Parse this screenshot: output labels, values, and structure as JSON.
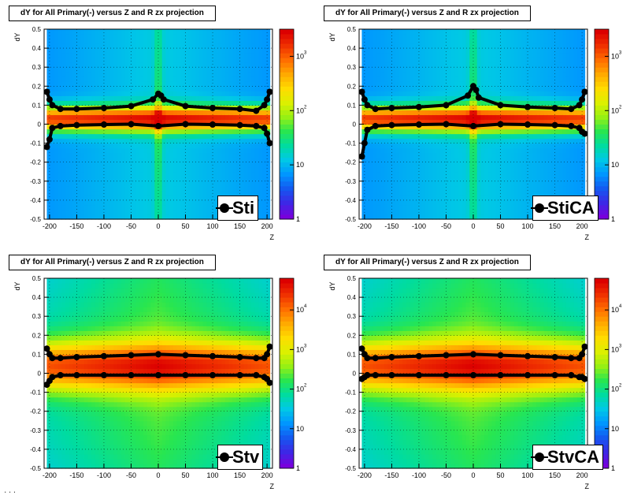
{
  "footer_text": "...",
  "colors": {
    "marker": "#000000",
    "frame": "#000000"
  },
  "chart_data": [
    {
      "type": "heatmap",
      "title": "dY for All Primary(-) versus Z and R zx projection",
      "xlabel": "Z",
      "ylabel": "dY",
      "xlim": [
        -210,
        210
      ],
      "ylim": [
        -0.5,
        0.5
      ],
      "x_ticks": [
        "-200",
        "-150",
        "-100",
        "-50",
        "0",
        "50",
        "100",
        "150",
        "200"
      ],
      "y_ticks": [
        "-0.5",
        "-0.4",
        "-0.3",
        "-0.2",
        "-0.1",
        "0",
        "0.1",
        "0.2",
        "0.3",
        "0.4",
        "0.5"
      ],
      "z_scale": "log",
      "z_ticks": [
        "1",
        "10",
        "10^2",
        "10^3"
      ],
      "legend": {
        "label": "Sti",
        "placement": "bottom-right"
      },
      "series": [
        {
          "x": [
            -205,
            -200,
            -195,
            -180,
            -150,
            -100,
            -50,
            -10,
            0,
            5,
            10,
            50,
            100,
            150,
            180,
            195,
            200,
            205
          ],
          "y": [
            0.17,
            0.13,
            0.1,
            0.08,
            0.08,
            0.085,
            0.095,
            0.13,
            0.16,
            0.15,
            0.13,
            0.095,
            0.085,
            0.08,
            0.07,
            0.1,
            0.13,
            0.17
          ]
        },
        {
          "x": [
            -205,
            -200,
            -195,
            -180,
            -150,
            -100,
            -50,
            0,
            50,
            100,
            150,
            180,
            195,
            200,
            205
          ],
          "y": [
            -0.12,
            -0.08,
            -0.02,
            -0.01,
            -0.005,
            -0.002,
            0.0,
            -0.01,
            0.0,
            -0.002,
            -0.005,
            -0.01,
            -0.02,
            -0.05,
            -0.1
          ]
        }
      ]
    },
    {
      "type": "heatmap",
      "title": "dY for All Primary(-) versus Z and R zx projection",
      "xlabel": "Z",
      "ylabel": "dY",
      "xlim": [
        -210,
        210
      ],
      "ylim": [
        -0.5,
        0.5
      ],
      "x_ticks": [
        "-200",
        "-150",
        "-100",
        "-50",
        "0",
        "50",
        "100",
        "150",
        "200"
      ],
      "y_ticks": [
        "-0.5",
        "-0.4",
        "-0.3",
        "-0.2",
        "-0.1",
        "0",
        "0.1",
        "0.2",
        "0.3",
        "0.4",
        "0.5"
      ],
      "z_scale": "log",
      "z_ticks": [
        "1",
        "10",
        "10^2",
        "10^3"
      ],
      "legend": {
        "label": "StiCA",
        "placement": "bottom-right"
      },
      "series": [
        {
          "x": [
            -205,
            -200,
            -195,
            -180,
            -150,
            -100,
            -50,
            -10,
            0,
            5,
            10,
            50,
            100,
            150,
            180,
            195,
            200,
            205
          ],
          "y": [
            0.17,
            0.13,
            0.1,
            0.08,
            0.085,
            0.09,
            0.1,
            0.15,
            0.2,
            0.18,
            0.14,
            0.1,
            0.09,
            0.085,
            0.08,
            0.1,
            0.13,
            0.17
          ]
        },
        {
          "x": [
            -205,
            -200,
            -195,
            -180,
            -150,
            -100,
            -50,
            0,
            50,
            100,
            150,
            180,
            195,
            200,
            205
          ],
          "y": [
            -0.17,
            -0.1,
            -0.03,
            -0.01,
            -0.005,
            -0.002,
            0.0,
            -0.01,
            0.0,
            -0.002,
            -0.005,
            -0.01,
            -0.02,
            -0.04,
            -0.05
          ]
        }
      ]
    },
    {
      "type": "heatmap",
      "title": "dY for All Primary(-) versus Z and R zx projection",
      "xlabel": "Z",
      "ylabel": "dY",
      "xlim": [
        -210,
        210
      ],
      "ylim": [
        -0.5,
        0.5
      ],
      "x_ticks": [
        "-200",
        "-150",
        "-100",
        "-50",
        "0",
        "50",
        "100",
        "150",
        "200"
      ],
      "y_ticks": [
        "-0.5",
        "-0.4",
        "-0.3",
        "-0.2",
        "-0.1",
        "0",
        "0.1",
        "0.2",
        "0.3",
        "0.4",
        "0.5"
      ],
      "z_scale": "log",
      "z_ticks": [
        "1",
        "10",
        "10^2",
        "10^3",
        "10^4"
      ],
      "legend": {
        "label": "Stv",
        "placement": "bottom-right"
      },
      "series": [
        {
          "x": [
            -205,
            -200,
            -195,
            -180,
            -150,
            -100,
            -50,
            0,
            50,
            100,
            150,
            180,
            195,
            200,
            205
          ],
          "y": [
            0.13,
            0.1,
            0.08,
            0.08,
            0.085,
            0.09,
            0.095,
            0.1,
            0.095,
            0.09,
            0.085,
            0.08,
            0.08,
            0.1,
            0.14
          ]
        },
        {
          "x": [
            -205,
            -200,
            -195,
            -180,
            -150,
            -100,
            -50,
            0,
            50,
            100,
            150,
            180,
            195,
            200,
            205
          ],
          "y": [
            -0.06,
            -0.04,
            -0.02,
            -0.01,
            -0.01,
            -0.01,
            -0.01,
            -0.01,
            -0.01,
            -0.01,
            -0.01,
            -0.01,
            -0.02,
            -0.03,
            -0.05
          ]
        }
      ]
    },
    {
      "type": "heatmap",
      "title": "dY for All Primary(-) versus Z and R zx projection",
      "xlabel": "Z",
      "ylabel": "dY",
      "xlim": [
        -210,
        210
      ],
      "ylim": [
        -0.5,
        0.5
      ],
      "x_ticks": [
        "-200",
        "-150",
        "-100",
        "-50",
        "0",
        "50",
        "100",
        "150",
        "200"
      ],
      "y_ticks": [
        "-0.5",
        "-0.4",
        "-0.3",
        "-0.2",
        "-0.1",
        "0",
        "0.1",
        "0.2",
        "0.3",
        "0.4",
        "0.5"
      ],
      "z_scale": "log",
      "z_ticks": [
        "1",
        "10",
        "10^2",
        "10^3",
        "10^4"
      ],
      "legend": {
        "label": "StvCA",
        "placement": "bottom-right"
      },
      "series": [
        {
          "x": [
            -205,
            -200,
            -195,
            -180,
            -150,
            -100,
            -50,
            0,
            50,
            100,
            150,
            180,
            195,
            200,
            205
          ],
          "y": [
            0.13,
            0.1,
            0.08,
            0.08,
            0.085,
            0.09,
            0.095,
            0.1,
            0.095,
            0.09,
            0.085,
            0.08,
            0.08,
            0.1,
            0.14
          ]
        },
        {
          "x": [
            -205,
            -200,
            -195,
            -180,
            -150,
            -100,
            -50,
            0,
            50,
            100,
            150,
            180,
            195,
            200,
            205
          ],
          "y": [
            -0.03,
            -0.02,
            -0.01,
            -0.01,
            -0.01,
            -0.01,
            -0.01,
            -0.01,
            -0.01,
            -0.01,
            -0.01,
            -0.01,
            -0.02,
            -0.02,
            -0.03
          ]
        }
      ]
    }
  ]
}
